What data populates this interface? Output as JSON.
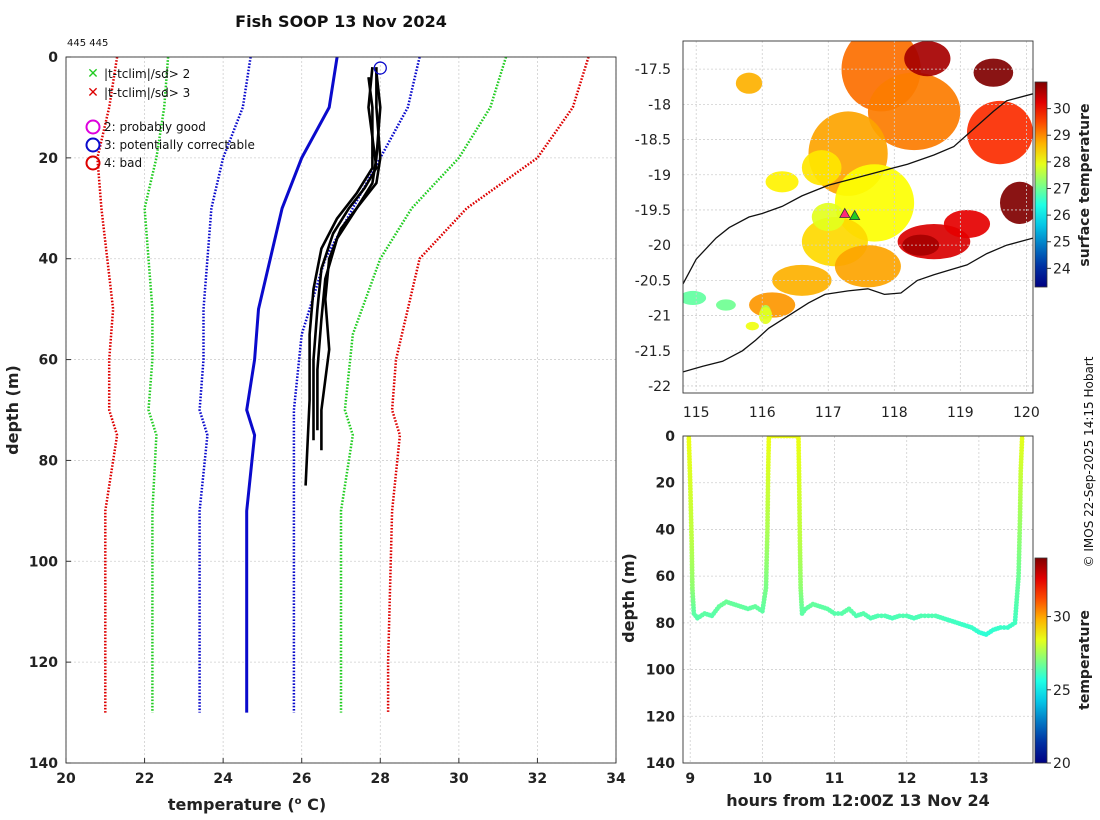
{
  "figure": {
    "title": "Fish SOOP 13 Nov 2024",
    "id_label": "445 445",
    "credit": "© IMOS 22-Sep-2025 14:15 Hobart"
  },
  "colors": {
    "red": "#dd0000",
    "green": "#22cc22",
    "blue": "#0a0acc",
    "black": "#000000",
    "magenta": "#dd00dd"
  },
  "chart_data": [
    {
      "type": "line",
      "name": "profile",
      "title": "Fish SOOP 13 Nov 2024",
      "xlabel": "temperature (",
      "xlabel_unit_sup": "o",
      "xlabel_unit": " C)",
      "ylabel": "depth (m)",
      "xlim": [
        20,
        34
      ],
      "ylim": [
        140,
        0
      ],
      "xticks": [
        20,
        22,
        24,
        26,
        28,
        30,
        32,
        34
      ],
      "yticks": [
        0,
        20,
        40,
        60,
        80,
        100,
        120,
        140
      ],
      "legend": {
        "markers": [
          {
            "symbol": "x",
            "color": "green",
            "text": "|t-tclim|/sd> 2"
          },
          {
            "symbol": "x",
            "color": "red",
            "text": "|t-tclim|/sd> 3"
          }
        ],
        "flags": [
          {
            "color": "magenta",
            "text": "2: probably good"
          },
          {
            "color": "blue",
            "text": "3: potentially correctable"
          },
          {
            "color": "red",
            "text": "4: bad"
          }
        ]
      },
      "flag_circle": {
        "t": 28.0,
        "z": 1
      },
      "climatology": [
        {
          "name": "clim-3sd-low",
          "color": "red",
          "style": "dotted",
          "t": [
            21.3,
            21.1,
            20.8,
            20.9,
            21.2,
            21.1,
            21.1,
            21.3,
            21.0,
            21.0,
            21.0,
            21.0
          ],
          "z": [
            0,
            10,
            20,
            30,
            50,
            60,
            70,
            75,
            90,
            100,
            120,
            130
          ]
        },
        {
          "name": "clim-2sd-low",
          "color": "green",
          "style": "dotted",
          "t": [
            22.6,
            22.5,
            22.3,
            22.0,
            22.2,
            22.2,
            22.1,
            22.3,
            22.2,
            22.2,
            22.2,
            22.2
          ],
          "z": [
            0,
            10,
            20,
            30,
            50,
            60,
            70,
            75,
            90,
            100,
            120,
            130
          ]
        },
        {
          "name": "clim-1sd-low",
          "color": "blue",
          "style": "dotted",
          "t": [
            24.7,
            24.5,
            24.0,
            23.7,
            23.5,
            23.5,
            23.4,
            23.6,
            23.4,
            23.4,
            23.4,
            23.4
          ],
          "z": [
            0,
            10,
            20,
            30,
            50,
            60,
            70,
            75,
            90,
            100,
            120,
            130
          ]
        },
        {
          "name": "clim-mean",
          "color": "blue",
          "style": "solid",
          "t": [
            26.9,
            26.7,
            26.0,
            25.5,
            25.2,
            24.9,
            24.8,
            24.6,
            24.8,
            24.6,
            24.6,
            24.6,
            24.6
          ],
          "z": [
            0,
            10,
            20,
            30,
            40,
            50,
            60,
            70,
            75,
            90,
            100,
            120,
            130
          ]
        },
        {
          "name": "clim-1sd-high",
          "color": "blue",
          "style": "dotted",
          "t": [
            29.0,
            28.7,
            28.0,
            27.3,
            26.6,
            26.0,
            25.8,
            25.8,
            25.8,
            25.8,
            25.8
          ],
          "z": [
            0,
            10,
            20,
            30,
            40,
            55,
            70,
            80,
            100,
            120,
            130
          ]
        },
        {
          "name": "clim-2sd-high",
          "color": "green",
          "style": "dotted",
          "t": [
            31.2,
            30.8,
            30.0,
            28.8,
            28.0,
            27.3,
            27.1,
            27.3,
            27.0,
            27.0,
            27.0
          ],
          "z": [
            0,
            10,
            20,
            30,
            40,
            55,
            70,
            75,
            90,
            120,
            130
          ]
        },
        {
          "name": "clim-3sd-high",
          "color": "red",
          "style": "dotted",
          "t": [
            33.3,
            32.9,
            32.0,
            30.2,
            29.0,
            28.4,
            28.3,
            28.5,
            28.3,
            28.2,
            28.2
          ],
          "z": [
            0,
            10,
            20,
            30,
            40,
            60,
            70,
            75,
            90,
            120,
            130
          ]
        }
      ],
      "casts": [
        {
          "name": "cast-1",
          "t": [
            27.8,
            27.7,
            27.9,
            27.6,
            27.2,
            26.8,
            26.5,
            26.4,
            26.3,
            26.3,
            26.3
          ],
          "z": [
            2,
            10,
            22,
            26,
            30,
            35,
            42,
            50,
            60,
            70,
            76
          ]
        },
        {
          "name": "cast-2",
          "t": [
            27.9,
            28.0,
            27.9,
            27.8,
            27.4,
            26.9,
            26.6,
            26.5,
            26.4,
            26.4
          ],
          "z": [
            3,
            10,
            20,
            25,
            30,
            36,
            44,
            52,
            62,
            74
          ]
        },
        {
          "name": "cast-3",
          "t": [
            27.7,
            27.8,
            27.8,
            27.4,
            26.9,
            26.5,
            26.3,
            26.2,
            26.2,
            26.1
          ],
          "z": [
            4,
            10,
            22,
            27,
            32,
            38,
            46,
            55,
            68,
            85
          ]
        },
        {
          "name": "cast-4",
          "t": [
            27.9,
            27.9,
            28.0,
            27.9,
            27.5,
            27.0,
            26.7,
            26.6,
            26.7,
            26.5,
            26.5
          ],
          "z": [
            2,
            10,
            20,
            25,
            29,
            34,
            40,
            48,
            58,
            70,
            78
          ]
        }
      ]
    },
    {
      "type": "heatmap",
      "name": "sst-map",
      "xlim": [
        114.8,
        120.1
      ],
      "ylim": [
        -22.1,
        -17.1
      ],
      "xticks": [
        115,
        116,
        117,
        118,
        119,
        120
      ],
      "yticks": [
        -17.5,
        -18,
        -18.5,
        -19,
        -19.5,
        -20,
        -20.5,
        -21,
        -21.5,
        -22
      ],
      "colorbar": {
        "label": "surface temperature",
        "min": 23.3,
        "max": 31.0,
        "ticks": [
          24,
          25,
          26,
          27,
          28,
          29,
          30
        ]
      },
      "sst_blobs": [
        {
          "lon": 117.8,
          "lat": -17.5,
          "rx": 0.6,
          "ry": 0.6,
          "t": 29.2
        },
        {
          "lon": 118.3,
          "lat": -18.1,
          "rx": 0.7,
          "ry": 0.55,
          "t": 29.1
        },
        {
          "lon": 117.3,
          "lat": -18.7,
          "rx": 0.6,
          "ry": 0.6,
          "t": 28.8
        },
        {
          "lon": 117.7,
          "lat": -19.4,
          "rx": 0.6,
          "ry": 0.55,
          "t": 28.1
        },
        {
          "lon": 117.1,
          "lat": -19.95,
          "rx": 0.5,
          "ry": 0.35,
          "t": 28.4
        },
        {
          "lon": 117.6,
          "lat": -20.3,
          "rx": 0.5,
          "ry": 0.3,
          "t": 28.8
        },
        {
          "lon": 116.6,
          "lat": -20.5,
          "rx": 0.45,
          "ry": 0.22,
          "t": 28.7
        },
        {
          "lon": 116.15,
          "lat": -20.85,
          "rx": 0.35,
          "ry": 0.18,
          "t": 28.9
        },
        {
          "lon": 118.6,
          "lat": -19.95,
          "rx": 0.55,
          "ry": 0.25,
          "t": 30.3
        },
        {
          "lon": 119.1,
          "lat": -19.7,
          "rx": 0.35,
          "ry": 0.2,
          "t": 30.2
        },
        {
          "lon": 119.6,
          "lat": -18.4,
          "rx": 0.5,
          "ry": 0.45,
          "t": 29.7
        },
        {
          "lon": 116.9,
          "lat": -18.9,
          "rx": 0.3,
          "ry": 0.25,
          "t": 28.3
        },
        {
          "lon": 116.3,
          "lat": -19.1,
          "rx": 0.25,
          "ry": 0.15,
          "t": 28.2
        },
        {
          "lon": 117.0,
          "lat": -19.6,
          "rx": 0.25,
          "ry": 0.2,
          "t": 27.9
        }
      ],
      "sst_patches": [
        {
          "lon": 118.5,
          "lat": -17.35,
          "rx": 0.35,
          "ry": 0.25,
          "t": 30.7
        },
        {
          "lon": 119.5,
          "lat": -17.55,
          "rx": 0.3,
          "ry": 0.2,
          "t": 31.0
        },
        {
          "lon": 119.9,
          "lat": -19.4,
          "rx": 0.3,
          "ry": 0.3,
          "t": 31.0
        },
        {
          "lon": 118.4,
          "lat": -20.0,
          "rx": 0.28,
          "ry": 0.15,
          "t": 30.7
        },
        {
          "lon": 115.8,
          "lat": -17.7,
          "rx": 0.2,
          "ry": 0.15,
          "t": 28.7
        },
        {
          "lon": 114.95,
          "lat": -20.75,
          "rx": 0.2,
          "ry": 0.1,
          "t": 26.9
        },
        {
          "lon": 115.45,
          "lat": -20.85,
          "rx": 0.15,
          "ry": 0.08,
          "t": 27.0
        },
        {
          "lon": 116.05,
          "lat": -20.95,
          "rx": 0.08,
          "ry": 0.1,
          "t": 27.5
        },
        {
          "lon": 115.85,
          "lat": -21.15,
          "rx": 0.1,
          "ry": 0.06,
          "t": 28.0
        },
        {
          "lon": 116.05,
          "lat": -21.0,
          "rx": 0.1,
          "ry": 0.12,
          "t": 27.9
        }
      ],
      "coastline": {
        "lon": [
          114.8,
          115.1,
          115.4,
          115.7,
          115.9,
          116.1,
          116.4,
          116.7,
          116.95,
          117.3,
          117.6,
          117.85,
          118.1,
          118.35,
          118.6,
          118.85,
          119.1,
          119.4,
          119.7,
          120.1
        ],
        "lat": [
          -21.8,
          -21.72,
          -21.65,
          -21.5,
          -21.35,
          -21.18,
          -21.0,
          -20.82,
          -20.7,
          -20.65,
          -20.62,
          -20.7,
          -20.68,
          -20.5,
          -20.42,
          -20.35,
          -20.28,
          -20.12,
          -20.0,
          -19.9
        ]
      },
      "shelf_contour": {
        "lon": [
          114.8,
          115.0,
          115.3,
          115.5,
          115.8,
          116.0,
          116.3,
          116.6,
          117.0,
          117.4,
          117.8,
          118.2,
          118.6,
          118.9,
          119.2,
          119.5,
          119.7,
          120.1
        ],
        "lat": [
          -20.55,
          -20.2,
          -19.9,
          -19.75,
          -19.6,
          -19.55,
          -19.45,
          -19.3,
          -19.15,
          -19.05,
          -18.95,
          -18.85,
          -18.72,
          -18.6,
          -18.35,
          -18.1,
          -17.95,
          -17.85
        ]
      },
      "ship_tracks": [
        {
          "lon": 117.25,
          "lat": -19.55,
          "color": "#ff2a7a"
        },
        {
          "lon": 117.4,
          "lat": -19.58,
          "color": "#22cc22"
        }
      ]
    },
    {
      "type": "scatter",
      "name": "depth-time",
      "xlabel": "hours from 12:00Z 13 Nov 24",
      "ylabel": "depth (m)",
      "xlim": [
        8.9,
        13.75
      ],
      "ylim": [
        140,
        0
      ],
      "xticks": [
        9,
        10,
        11,
        12,
        13
      ],
      "yticks": [
        0,
        20,
        40,
        60,
        80,
        100,
        120,
        140
      ],
      "colorbar": {
        "label": "temperature",
        "min": 20.0,
        "max": 34.0,
        "ticks": [
          20,
          25,
          30
        ]
      },
      "track": {
        "h": [
          8.98,
          9.0,
          9.02,
          9.03,
          9.05,
          9.1,
          9.2,
          9.3,
          9.4,
          9.5,
          9.6,
          9.7,
          9.8,
          9.9,
          10.0,
          10.05,
          10.07,
          10.08,
          10.09,
          10.1,
          10.5,
          10.51,
          10.52,
          10.53,
          10.55,
          10.6,
          10.7,
          10.8,
          10.9,
          11.0,
          11.1,
          11.2,
          11.3,
          11.4,
          11.5,
          11.6,
          11.7,
          11.8,
          11.9,
          12.0,
          12.1,
          12.2,
          12.3,
          12.4,
          12.5,
          12.6,
          12.7,
          12.8,
          12.9,
          13.0,
          13.1,
          13.2,
          13.3,
          13.4,
          13.5,
          13.55,
          13.57,
          13.58,
          13.6
        ],
        "z": [
          0,
          20,
          45,
          65,
          76,
          78,
          76,
          77,
          73,
          71,
          72,
          73,
          74,
          73,
          75,
          65,
          40,
          15,
          0,
          0,
          0,
          20,
          45,
          65,
          76,
          74,
          72,
          73,
          74,
          76,
          76,
          74,
          77,
          76,
          78,
          77,
          77,
          78,
          77,
          77,
          78,
          77,
          77,
          77,
          78,
          79,
          80,
          81,
          82,
          84,
          85,
          83,
          82,
          82,
          80,
          60,
          35,
          15,
          0
        ],
        "t": [
          28.5,
          28.2,
          27.8,
          27.2,
          26.5,
          26.4,
          26.5,
          26.4,
          26.6,
          26.7,
          26.6,
          26.6,
          26.5,
          26.6,
          26.5,
          26.9,
          27.6,
          28.2,
          28.5,
          28.5,
          28.5,
          28.2,
          27.8,
          27.2,
          26.5,
          26.5,
          26.6,
          26.5,
          26.5,
          26.4,
          26.4,
          26.5,
          26.3,
          26.4,
          26.3,
          26.3,
          26.3,
          26.2,
          26.3,
          26.3,
          26.2,
          26.3,
          26.3,
          26.3,
          26.2,
          26.1,
          26.1,
          26.0,
          26.0,
          25.9,
          25.8,
          25.9,
          26.0,
          26.0,
          26.1,
          26.7,
          27.4,
          28.0,
          28.4
        ]
      }
    }
  ]
}
